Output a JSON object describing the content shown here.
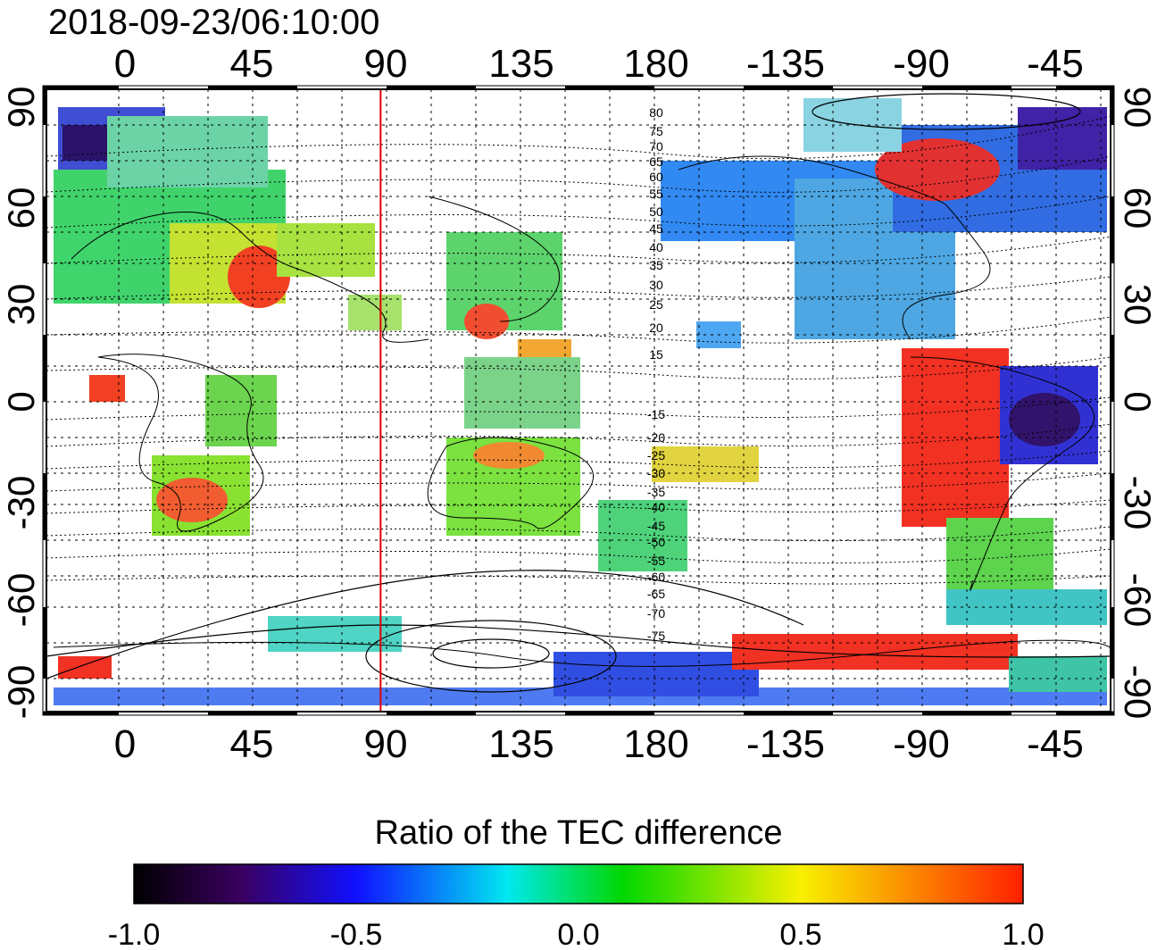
{
  "title": "2018-09-23/06:10:00",
  "map": {
    "lon_ticks": [
      "0",
      "45",
      "90",
      "135",
      "180",
      "-135",
      "-90",
      "-45"
    ],
    "lat_ticks": [
      "90",
      "60",
      "30",
      "0",
      "-30",
      "-60",
      "-90"
    ],
    "contour_labels": [
      "80",
      "75",
      "70",
      "65",
      "60",
      "55",
      "50",
      "45",
      "40",
      "35",
      "30",
      "25",
      "20",
      "15",
      "-15",
      "-20",
      "-25",
      "-30",
      "-35",
      "-40",
      "-45",
      "-50",
      "-55",
      "-60",
      "-65",
      "-70",
      "-75"
    ],
    "marker_longitude": 88,
    "marker_color": "#e00000"
  },
  "colorbar": {
    "title": "Ratio of the TEC difference",
    "tick_labels": [
      "-1.0",
      "-0.5",
      "0.0",
      "0.5",
      "1.0"
    ],
    "min": -1.0,
    "max": 1.0,
    "colors": [
      "#000000",
      "#3a0060",
      "#1010ff",
      "#00e8f0",
      "#00d800",
      "#f8f000",
      "#ff2000"
    ]
  }
}
